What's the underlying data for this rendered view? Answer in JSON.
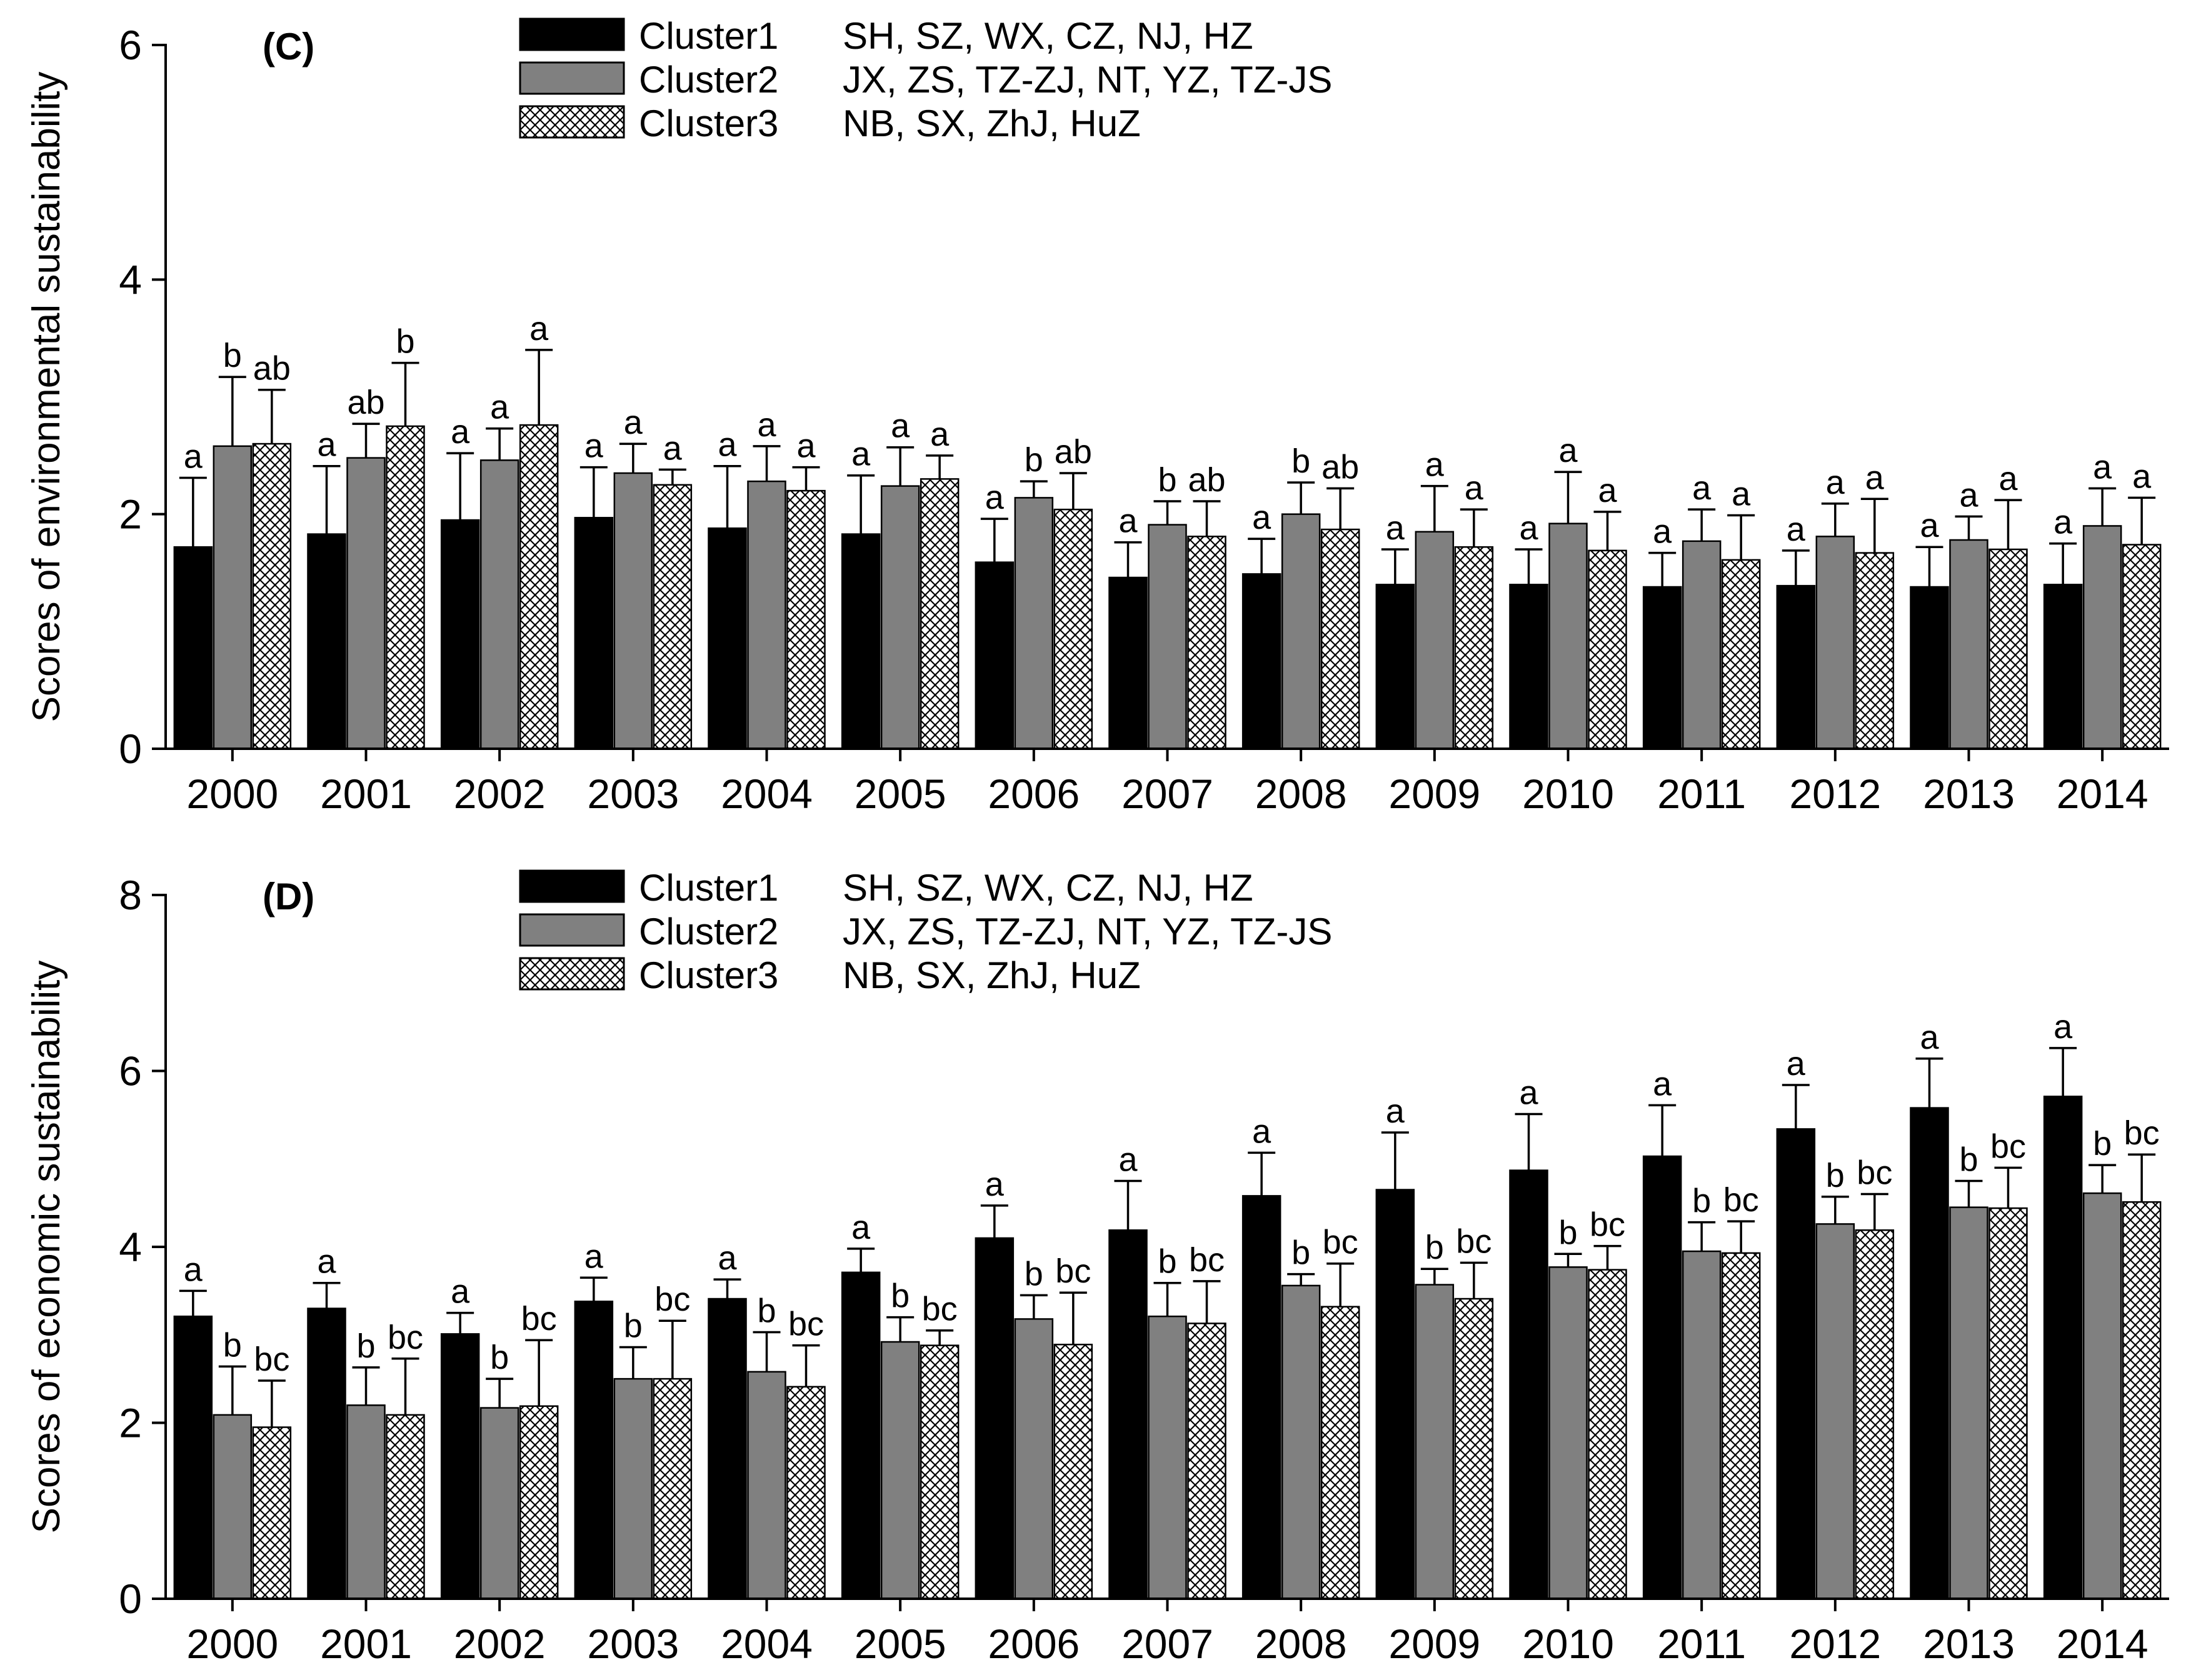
{
  "chart_data": [
    {
      "type": "bar",
      "panel_label": "(C)",
      "ylabel": "Scores of environmental sustainability",
      "xlabel": "",
      "categories": [
        "2000",
        "2001",
        "2002",
        "2003",
        "2004",
        "2005",
        "2006",
        "2007",
        "2008",
        "2009",
        "2010",
        "2011",
        "2012",
        "2013",
        "2014"
      ],
      "ylim": [
        0,
        6
      ],
      "yticks": [
        "0",
        "2",
        "4",
        "6"
      ],
      "legend_placement": "top-center",
      "series": [
        {
          "name": "Cluster1",
          "members": "SH, SZ, WX, CZ, NJ, HZ",
          "pattern": "solid-black",
          "values": [
            1.72,
            1.83,
            1.95,
            1.97,
            1.88,
            1.83,
            1.59,
            1.46,
            1.49,
            1.4,
            1.4,
            1.38,
            1.39,
            1.38,
            1.4
          ],
          "errors": [
            0.59,
            0.58,
            0.57,
            0.43,
            0.53,
            0.5,
            0.37,
            0.3,
            0.3,
            0.3,
            0.3,
            0.29,
            0.3,
            0.34,
            0.35
          ],
          "letters": [
            "a",
            "a",
            "a",
            "a",
            "a",
            "a",
            "a",
            "a",
            "a",
            "a",
            "a",
            "a",
            "a",
            "a",
            "a"
          ]
        },
        {
          "name": "Cluster2",
          "members": "JX, ZS, TZ-ZJ, NT, YZ, TZ-JS",
          "pattern": "solid-gray",
          "values": [
            2.58,
            2.48,
            2.46,
            2.35,
            2.28,
            2.24,
            2.14,
            1.91,
            2.0,
            1.85,
            1.92,
            1.77,
            1.81,
            1.78,
            1.9
          ],
          "errors": [
            0.59,
            0.29,
            0.27,
            0.25,
            0.3,
            0.33,
            0.14,
            0.2,
            0.27,
            0.39,
            0.44,
            0.27,
            0.28,
            0.2,
            0.32
          ],
          "letters": [
            "b",
            "ab",
            "a",
            "a",
            "a",
            "a",
            "b",
            "b",
            "b",
            "a",
            "a",
            "a",
            "a",
            "a",
            "a"
          ]
        },
        {
          "name": "Cluster3",
          "members": "NB, SX, ZhJ, HuZ",
          "pattern": "crosshatch",
          "values": [
            2.6,
            2.75,
            2.76,
            2.25,
            2.2,
            2.3,
            2.04,
            1.81,
            1.87,
            1.72,
            1.69,
            1.61,
            1.67,
            1.7,
            1.74
          ],
          "errors": [
            0.46,
            0.54,
            0.64,
            0.13,
            0.2,
            0.2,
            0.31,
            0.3,
            0.35,
            0.32,
            0.33,
            0.38,
            0.46,
            0.42,
            0.4
          ],
          "letters": [
            "ab",
            "b",
            "a",
            "a",
            "a",
            "a",
            "ab",
            "ab",
            "ab",
            "a",
            "a",
            "a",
            "a",
            "a",
            "a"
          ]
        }
      ]
    },
    {
      "type": "bar",
      "panel_label": "(D)",
      "ylabel": "Scores of economic sustainability",
      "xlabel": "",
      "categories": [
        "2000",
        "2001",
        "2002",
        "2003",
        "2004",
        "2005",
        "2006",
        "2007",
        "2008",
        "2009",
        "2010",
        "2011",
        "2012",
        "2013",
        "2014"
      ],
      "ylim": [
        0,
        8
      ],
      "yticks": [
        "0",
        "2",
        "4",
        "6",
        "8"
      ],
      "legend_placement": "top-center",
      "series": [
        {
          "name": "Cluster1",
          "members": "SH, SZ, WX, CZ, NJ, HZ",
          "pattern": "solid-black",
          "values": [
            3.21,
            3.3,
            3.01,
            3.38,
            3.41,
            3.71,
            4.1,
            4.19,
            4.58,
            4.65,
            4.87,
            5.03,
            5.34,
            5.58,
            5.71
          ],
          "errors": [
            0.29,
            0.29,
            0.24,
            0.27,
            0.22,
            0.27,
            0.37,
            0.56,
            0.49,
            0.65,
            0.64,
            0.58,
            0.5,
            0.56,
            0.55
          ],
          "letters": [
            "a",
            "a",
            "a",
            "a",
            "a",
            "a",
            "a",
            "a",
            "a",
            "a",
            "a",
            "a",
            "a",
            "a",
            "a"
          ]
        },
        {
          "name": "Cluster2",
          "members": "JX, ZS, TZ-ZJ, NT, YZ, TZ-JS",
          "pattern": "solid-gray",
          "values": [
            2.09,
            2.2,
            2.17,
            2.5,
            2.58,
            2.92,
            3.18,
            3.21,
            3.56,
            3.57,
            3.77,
            3.95,
            4.26,
            4.45,
            4.61
          ],
          "errors": [
            0.55,
            0.43,
            0.33,
            0.36,
            0.45,
            0.28,
            0.27,
            0.38,
            0.13,
            0.18,
            0.15,
            0.33,
            0.31,
            0.3,
            0.32
          ],
          "letters": [
            "b",
            "b",
            "b",
            "b",
            "b",
            "b",
            "b",
            "b",
            "b",
            "b",
            "b",
            "b",
            "b",
            "b",
            "b"
          ]
        },
        {
          "name": "Cluster3",
          "members": "NB, SX, ZhJ, HuZ",
          "pattern": "crosshatch",
          "values": [
            1.95,
            2.09,
            2.19,
            2.5,
            2.41,
            2.88,
            2.89,
            3.13,
            3.32,
            3.41,
            3.74,
            3.93,
            4.19,
            4.44,
            4.51
          ],
          "errors": [
            0.53,
            0.64,
            0.75,
            0.66,
            0.47,
            0.17,
            0.59,
            0.48,
            0.49,
            0.41,
            0.27,
            0.36,
            0.41,
            0.46,
            0.54
          ],
          "letters": [
            "bc",
            "bc",
            "bc",
            "bc",
            "bc",
            "bc",
            "bc",
            "bc",
            "bc",
            "bc",
            "bc",
            "bc",
            "bc",
            "bc",
            "bc"
          ]
        }
      ]
    }
  ]
}
